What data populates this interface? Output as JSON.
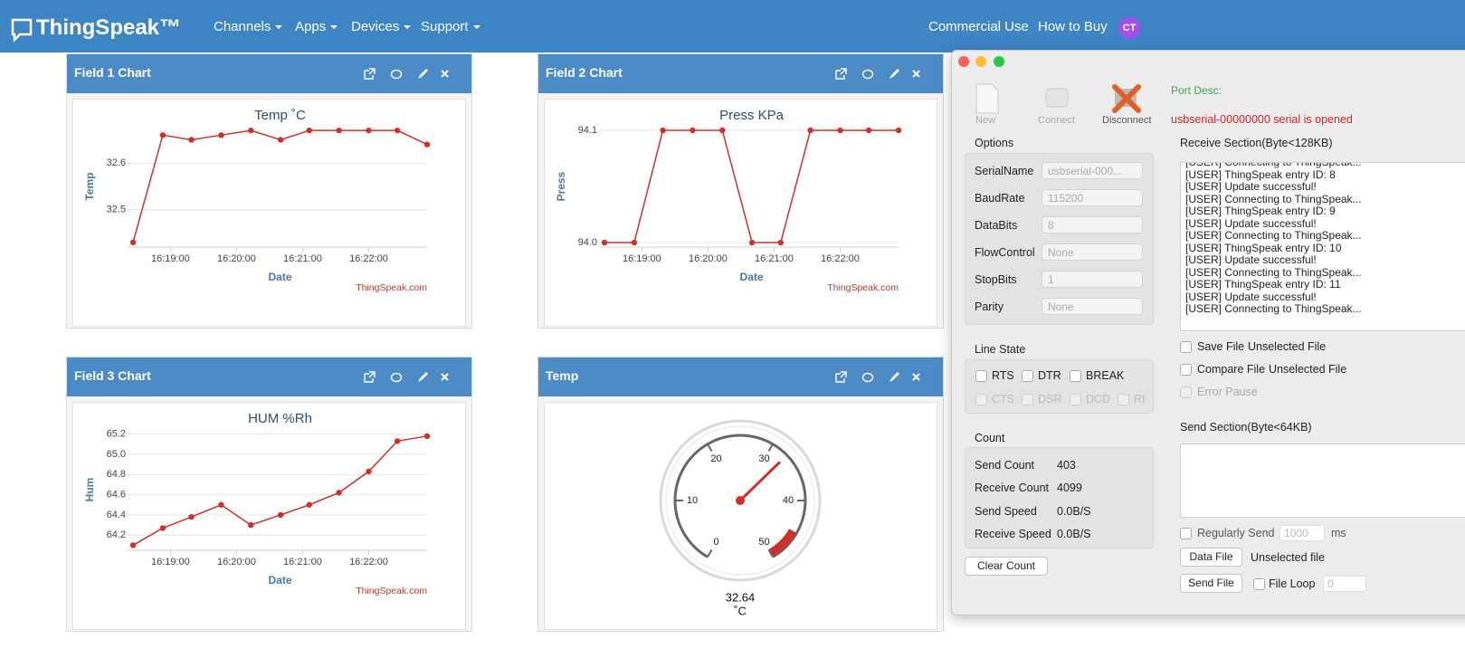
{
  "navbar": {
    "brand": "ThingSpeak™",
    "menus": [
      "Channels",
      "Apps",
      "Devices",
      "Support"
    ],
    "links": [
      "Commercial Use",
      "How to Buy"
    ],
    "avatar": "CT"
  },
  "widgets": [
    {
      "title": "Field 1 Chart",
      "chart": {
        "type": "line",
        "title": "Temp ˚C",
        "x_label": "Date",
        "y_label": "Temp",
        "credit": "ThingSpeak.com",
        "color": "#d0302a",
        "x": [
          "16:18:26",
          "16:18:53",
          "16:19:19",
          "16:19:46",
          "16:20:13",
          "16:20:40",
          "16:21:06",
          "16:21:33",
          "16:22:00",
          "16:22:26",
          "16:22:53"
        ],
        "values": [
          32.43,
          32.66,
          32.65,
          32.66,
          32.67,
          32.65,
          32.67,
          32.67,
          32.67,
          32.67,
          32.64
        ],
        "xlim": [
          "16:18:26",
          "16:22:53"
        ],
        "xticks": [
          "16:19:00",
          "16:20:00",
          "16:21:00",
          "16:22:00"
        ],
        "ylim": [
          32.42,
          32.68
        ],
        "yticks": [
          32.5,
          32.6
        ],
        "grid": true
      }
    },
    {
      "title": "Field 2 Chart",
      "chart": {
        "type": "line",
        "title": "Press KPa",
        "x_label": "Date",
        "y_label": "Press",
        "credit": "ThingSpeak.com",
        "color": "#d0302a",
        "x": [
          "16:18:26",
          "16:18:53",
          "16:19:19",
          "16:19:46",
          "16:20:13",
          "16:20:40",
          "16:21:06",
          "16:21:33",
          "16:22:00",
          "16:22:26",
          "16:22:53"
        ],
        "values": [
          94.0,
          94.0,
          94.1,
          94.1,
          94.1,
          94.0,
          94.0,
          94.1,
          94.1,
          94.1,
          94.1
        ],
        "xlim": [
          "16:18:26",
          "16:22:53"
        ],
        "xticks": [
          "16:19:00",
          "16:20:00",
          "16:21:00",
          "16:22:00"
        ],
        "ylim": [
          93.996,
          94.104
        ],
        "yticks": [
          {
            "value": 94,
            "label": "94.0"
          },
          94.1
        ],
        "grid": true
      }
    },
    {
      "title": "Field 3 Chart",
      "chart": {
        "type": "line",
        "title": "HUM %Rh",
        "x_label": "Date",
        "y_label": "Hum",
        "credit": "ThingSpeak.com",
        "color": "#d0302a",
        "x": [
          "16:18:26",
          "16:18:53",
          "16:19:19",
          "16:19:46",
          "16:20:13",
          "16:20:40",
          "16:21:06",
          "16:21:33",
          "16:22:00",
          "16:22:26",
          "16:22:53"
        ],
        "values": [
          64.1,
          64.27,
          64.38,
          64.5,
          64.3,
          64.4,
          64.5,
          64.62,
          64.83,
          65.13,
          65.18
        ],
        "xlim": [
          "16:18:26",
          "16:22:53"
        ],
        "xticks": [
          "16:19:00",
          "16:20:00",
          "16:21:00",
          "16:22:00"
        ],
        "ylim": [
          64.05,
          65.25
        ],
        "yticks": [
          64.2,
          64.4,
          64.6,
          64.8,
          {
            "value": 65,
            "label": "65.0"
          },
          65.2
        ],
        "grid": true
      }
    },
    {
      "title": "Temp",
      "chart": {
        "type": "gauge",
        "value": 32.64,
        "unit": "˚C",
        "range": [
          0,
          50
        ],
        "ticks": [
          0,
          10,
          20,
          30,
          40,
          50
        ],
        "danger_range": [
          45,
          50
        ],
        "color": "#d0302a"
      }
    }
  ],
  "serial_tool": {
    "toolbar": [
      "New",
      "Connect",
      "Disconnect"
    ],
    "port_desc": "Port Desc:",
    "status": "usbserial-00000000 serial is opened",
    "options": {
      "heading": "Options",
      "fields": [
        [
          "SerialName",
          "usbserial-000..."
        ],
        [
          "BaudRate",
          "115200"
        ],
        [
          "DataBits",
          "8"
        ],
        [
          "FlowControl",
          "None"
        ],
        [
          "StopBits",
          "1"
        ],
        [
          "Parity",
          "None"
        ]
      ]
    },
    "line_state": {
      "heading": "Line State",
      "signals": [
        "RTS",
        "DTR",
        "BREAK",
        "CTS",
        "DSR",
        "DCD",
        "RI"
      ]
    },
    "count": {
      "heading": "Count",
      "rows": [
        [
          "Send Count",
          "403"
        ],
        [
          "Receive Count",
          "4099"
        ],
        [
          "Send Speed",
          "0.0B/S"
        ],
        [
          "Receive Speed",
          "0.0B/S"
        ]
      ],
      "button": "Clear Count"
    },
    "receive": {
      "heading": "Receive Section(Byte<128KB)",
      "log": [
        "[USER] Connecting to ThingSpeak...",
        "[USER] ThingSpeak entry ID: 8",
        "[USER] Update successful!",
        "[USER] Connecting to ThingSpeak...",
        "[USER] ThingSpeak entry ID: 9",
        "[USER] Update successful!",
        "[USER] Connecting to ThingSpeak...",
        "[USER] ThingSpeak entry ID: 10",
        "[USER] Update successful!",
        "[USER] Connecting to ThingSpeak...",
        "[USER] ThingSpeak entry ID: 11",
        "[USER] Update successful!",
        "[USER] Connecting to ThingSpeak..."
      ],
      "save_file": "Save File",
      "save_file_status": "Unselected File",
      "compare_file": "Compare File",
      "compare_file_status": "Unselected File",
      "error_pause": "Error Pause"
    },
    "send": {
      "heading": "Send Section(Byte<64KB)",
      "regularly_send": "Regularly Send",
      "interval": "1000",
      "unit": "ms",
      "data_file": "Data File",
      "data_file_status": "Unselected file",
      "send_file": "Send File",
      "file_loop": "File Loop",
      "loop_count": "0"
    }
  }
}
